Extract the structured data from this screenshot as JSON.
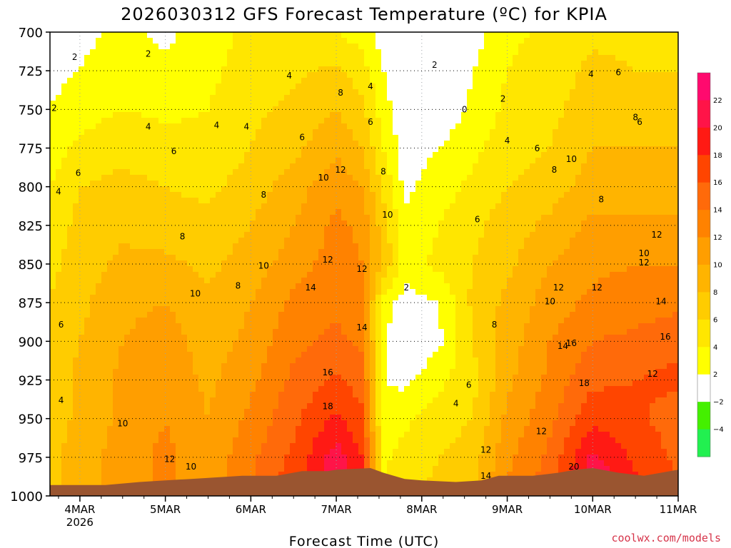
{
  "chart_data": {
    "type": "heatmap",
    "title": "2026030312 GFS Forecast Temperature (ºC) for KPIA",
    "xlabel": "Forecast Time (UTC)",
    "ylabel": "",
    "credit": "coolwx.com/models",
    "y_axis": {
      "ticks": [
        "700",
        "725",
        "750",
        "775",
        "800",
        "825",
        "850",
        "875",
        "900",
        "925",
        "950",
        "975",
        "1000"
      ],
      "range": [
        700,
        1000
      ],
      "units": "hPa"
    },
    "x_axis": {
      "ticks": [
        "4MAR",
        "5MAR",
        "6MAR",
        "7MAR",
        "8MAR",
        "9MAR",
        "10MAR",
        "11MAR"
      ],
      "year_label": "2026",
      "range_days": [
        3.65,
        11.0
      ]
    },
    "colorbar": {
      "labels": [
        "22",
        "20",
        "18",
        "16",
        "14",
        "12",
        "10",
        "8",
        "6",
        "4",
        "2",
        "−2",
        "−4"
      ],
      "bands": [
        {
          "from": 22,
          "to": 24,
          "color": "#ff0a6e"
        },
        {
          "from": 20,
          "to": 22,
          "color": "#ff1448"
        },
        {
          "from": 18,
          "to": 20,
          "color": "#ff1a14"
        },
        {
          "from": 16,
          "to": 18,
          "color": "#ff4500"
        },
        {
          "from": 14,
          "to": 16,
          "color": "#ff6a0a"
        },
        {
          "from": 12,
          "to": 14,
          "color": "#ff8200"
        },
        {
          "from": 10,
          "to": 12,
          "color": "#ff9e00"
        },
        {
          "from": 8,
          "to": 10,
          "color": "#ffb400"
        },
        {
          "from": 6,
          "to": 8,
          "color": "#ffcc00"
        },
        {
          "from": 4,
          "to": 6,
          "color": "#ffe600"
        },
        {
          "from": 2,
          "to": 4,
          "color": "#ffff00"
        },
        {
          "from": -2,
          "to": 2,
          "color": "#ffffff"
        },
        {
          "from": -4,
          "to": -2,
          "color": "#44f000"
        },
        {
          "from": -6,
          "to": -4,
          "color": "#22f050"
        }
      ]
    },
    "grid": true,
    "times": [
      3.65,
      4.0,
      4.5,
      5.0,
      5.5,
      6.0,
      6.5,
      7.0,
      7.3,
      7.55,
      7.8,
      8.2,
      8.6,
      9.0,
      9.5,
      10.0,
      10.5,
      11.0
    ],
    "pressure_levels": [
      700,
      725,
      750,
      775,
      800,
      825,
      850,
      875,
      900,
      925,
      950,
      975,
      1000
    ],
    "temperature_grid": [
      [
        1.0,
        1.5,
        2.5,
        1.5,
        3.0,
        4.5,
        5.0,
        4.0,
        3.0,
        1.0,
        -1.5,
        -2.0,
        1.0,
        3.5,
        4.5,
        5.5,
        5.5,
        5.0
      ],
      [
        1.5,
        2.0,
        3.0,
        2.5,
        3.5,
        5.0,
        5.5,
        6.5,
        5.0,
        2.0,
        0.0,
        -0.5,
        2.0,
        4.0,
        5.0,
        6.5,
        6.0,
        6.0
      ],
      [
        2.0,
        3.0,
        4.0,
        3.5,
        4.0,
        5.5,
        6.5,
        8.0,
        6.5,
        3.0,
        0.5,
        0.5,
        2.5,
        4.5,
        5.5,
        7.0,
        7.0,
        7.0
      ],
      [
        3.0,
        4.5,
        5.5,
        5.0,
        4.5,
        6.0,
        7.5,
        9.5,
        8.0,
        4.0,
        1.0,
        2.0,
        3.5,
        5.0,
        6.0,
        8.0,
        8.0,
        8.0
      ],
      [
        4.0,
        6.0,
        6.5,
        6.0,
        5.5,
        7.0,
        9.0,
        11.5,
        10.0,
        5.5,
        1.5,
        3.0,
        4.5,
        6.0,
        7.0,
        9.0,
        9.0,
        9.0
      ],
      [
        5.0,
        6.5,
        7.5,
        7.0,
        6.5,
        8.0,
        10.0,
        12.5,
        11.5,
        7.0,
        2.5,
        4.0,
        5.5,
        7.0,
        8.5,
        10.5,
        10.5,
        10.5
      ],
      [
        5.5,
        7.0,
        8.5,
        8.5,
        7.5,
        9.0,
        11.0,
        13.0,
        12.0,
        8.0,
        3.0,
        4.5,
        6.0,
        7.5,
        10.0,
        11.5,
        12.0,
        12.0
      ],
      [
        6.0,
        7.5,
        9.5,
        10.0,
        8.5,
        10.0,
        12.5,
        13.5,
        12.5,
        3.0,
        1.0,
        2.0,
        6.5,
        8.5,
        11.0,
        12.5,
        13.0,
        13.5
      ],
      [
        6.5,
        8.0,
        10.0,
        11.0,
        9.0,
        10.5,
        13.5,
        14.5,
        13.5,
        2.5,
        0.0,
        1.5,
        6.0,
        9.0,
        12.0,
        14.0,
        14.5,
        15.5
      ],
      [
        6.5,
        8.5,
        10.5,
        11.5,
        9.5,
        11.5,
        14.5,
        16.5,
        15.0,
        2.0,
        1.5,
        3.5,
        5.5,
        9.5,
        12.5,
        15.5,
        16.0,
        16.5
      ],
      [
        7.0,
        8.5,
        10.5,
        12.0,
        10.0,
        12.5,
        15.5,
        18.5,
        16.5,
        2.5,
        3.5,
        5.0,
        6.0,
        10.5,
        13.5,
        17.5,
        16.5,
        15.0
      ],
      [
        7.5,
        9.0,
        11.0,
        12.5,
        10.5,
        13.5,
        16.5,
        21.0,
        18.0,
        3.5,
        5.0,
        6.0,
        7.0,
        11.5,
        14.5,
        20.5,
        17.5,
        15.5
      ],
      [
        7.5,
        9.0,
        11.0,
        12.5,
        11.0,
        14.0,
        17.5,
        23.0,
        19.5,
        4.0,
        5.5,
        6.5,
        8.0,
        12.5,
        15.5,
        22.5,
        19.0,
        16.5
      ]
    ],
    "surface_pressure": [
      [
        3.65,
        993
      ],
      [
        4.3,
        993
      ],
      [
        4.7,
        991
      ],
      [
        5.0,
        990
      ],
      [
        5.3,
        989
      ],
      [
        5.6,
        988
      ],
      [
        5.9,
        987
      ],
      [
        6.3,
        987
      ],
      [
        6.6,
        984
      ],
      [
        6.9,
        984
      ],
      [
        7.0,
        983
      ],
      [
        7.4,
        982
      ],
      [
        7.55,
        985
      ],
      [
        7.8,
        989
      ],
      [
        8.0,
        990
      ],
      [
        8.4,
        991
      ],
      [
        8.7,
        990
      ],
      [
        8.9,
        987
      ],
      [
        9.3,
        987
      ],
      [
        9.6,
        985
      ],
      [
        9.8,
        983
      ],
      [
        10.0,
        982
      ],
      [
        10.3,
        985
      ],
      [
        10.6,
        987
      ],
      [
        10.8,
        985
      ],
      [
        11.0,
        983
      ]
    ],
    "contour_labels": [
      {
        "t": 3.7,
        "p": 751,
        "v": "2"
      },
      {
        "t": 3.94,
        "p": 718,
        "v": "2"
      },
      {
        "t": 4.8,
        "p": 716,
        "v": "2"
      },
      {
        "t": 3.75,
        "p": 805,
        "v": "4"
      },
      {
        "t": 3.98,
        "p": 793,
        "v": "6"
      },
      {
        "t": 4.8,
        "p": 763,
        "v": "4"
      },
      {
        "t": 5.1,
        "p": 779,
        "v": "6"
      },
      {
        "t": 5.6,
        "p": 762,
        "v": "4"
      },
      {
        "t": 5.95,
        "p": 763,
        "v": "4"
      },
      {
        "t": 6.45,
        "p": 730,
        "v": "4"
      },
      {
        "t": 6.6,
        "p": 770,
        "v": "6"
      },
      {
        "t": 6.15,
        "p": 807,
        "v": "8"
      },
      {
        "t": 5.2,
        "p": 834,
        "v": "8"
      },
      {
        "t": 5.85,
        "p": 866,
        "v": "8"
      },
      {
        "t": 5.35,
        "p": 871,
        "v": "10"
      },
      {
        "t": 6.15,
        "p": 853,
        "v": "10"
      },
      {
        "t": 6.9,
        "p": 849,
        "v": "12"
      },
      {
        "t": 6.7,
        "p": 867,
        "v": "14"
      },
      {
        "t": 6.85,
        "p": 796,
        "v": "10"
      },
      {
        "t": 7.05,
        "p": 791,
        "v": "12"
      },
      {
        "t": 7.4,
        "p": 737,
        "v": "4"
      },
      {
        "t": 7.4,
        "p": 760,
        "v": "6"
      },
      {
        "t": 7.55,
        "p": 792,
        "v": "8"
      },
      {
        "t": 7.6,
        "p": 820,
        "v": "10"
      },
      {
        "t": 7.3,
        "p": 855,
        "v": "12"
      },
      {
        "t": 7.3,
        "p": 893,
        "v": "14"
      },
      {
        "t": 6.9,
        "p": 922,
        "v": "16"
      },
      {
        "t": 6.9,
        "p": 944,
        "v": "18"
      },
      {
        "t": 7.05,
        "p": 741,
        "v": "8"
      },
      {
        "t": 7.82,
        "p": 867,
        "v": "2"
      },
      {
        "t": 8.15,
        "p": 723,
        "v": "2"
      },
      {
        "t": 8.5,
        "p": 752,
        "v": "0"
      },
      {
        "t": 8.95,
        "p": 745,
        "v": "2"
      },
      {
        "t": 9.0,
        "p": 772,
        "v": "4"
      },
      {
        "t": 8.4,
        "p": 942,
        "v": "4"
      },
      {
        "t": 8.55,
        "p": 930,
        "v": "6"
      },
      {
        "t": 8.65,
        "p": 823,
        "v": "6"
      },
      {
        "t": 8.85,
        "p": 891,
        "v": "8"
      },
      {
        "t": 9.35,
        "p": 777,
        "v": "6"
      },
      {
        "t": 9.55,
        "p": 791,
        "v": "8"
      },
      {
        "t": 9.75,
        "p": 784,
        "v": "10"
      },
      {
        "t": 9.98,
        "p": 729,
        "v": "4"
      },
      {
        "t": 10.3,
        "p": 728,
        "v": "6"
      },
      {
        "t": 10.5,
        "p": 757,
        "v": "8"
      },
      {
        "t": 10.1,
        "p": 810,
        "v": "8"
      },
      {
        "t": 10.6,
        "p": 845,
        "v": "10"
      },
      {
        "t": 10.6,
        "p": 851,
        "v": "12"
      },
      {
        "t": 9.5,
        "p": 876,
        "v": "10"
      },
      {
        "t": 9.6,
        "p": 867,
        "v": "12"
      },
      {
        "t": 10.05,
        "p": 867,
        "v": "12"
      },
      {
        "t": 9.65,
        "p": 905,
        "v": "14"
      },
      {
        "t": 9.75,
        "p": 903,
        "v": "16"
      },
      {
        "t": 9.9,
        "p": 929,
        "v": "18"
      },
      {
        "t": 9.4,
        "p": 960,
        "v": "12"
      },
      {
        "t": 8.75,
        "p": 972,
        "v": "12"
      },
      {
        "t": 8.75,
        "p": 989,
        "v": "14"
      },
      {
        "t": 9.78,
        "p": 983,
        "v": "20"
      },
      {
        "t": 10.7,
        "p": 923,
        "v": "12"
      },
      {
        "t": 10.8,
        "p": 876,
        "v": "14"
      },
      {
        "t": 10.85,
        "p": 899,
        "v": "16"
      },
      {
        "t": 10.55,
        "p": 760,
        "v": "6"
      },
      {
        "t": 10.75,
        "p": 833,
        "v": "12"
      },
      {
        "t": 3.78,
        "p": 891,
        "v": "6"
      },
      {
        "t": 3.78,
        "p": 940,
        "v": "4"
      },
      {
        "t": 4.5,
        "p": 955,
        "v": "10"
      },
      {
        "t": 5.05,
        "p": 978,
        "v": "12"
      },
      {
        "t": 5.3,
        "p": 983,
        "v": "10"
      }
    ]
  }
}
